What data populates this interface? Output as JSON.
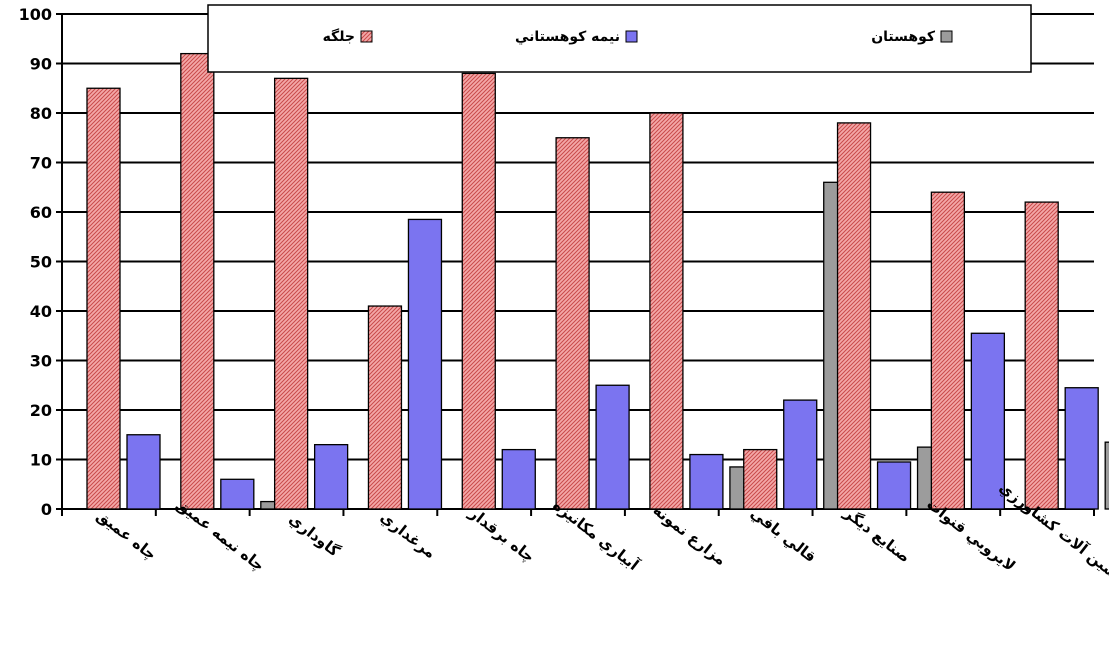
{
  "colors": {
    "background": "#ffffff",
    "grid": "#000000",
    "jolge": "#f4a8a8",
    "jolge_hatch": "#c84a4a",
    "nime_kuhestani": "#7b74f0",
    "kuhestan": "#9c9c9c"
  },
  "legend": {
    "placement": "top-center",
    "items": [
      "جلگه",
      "نيمه كوهستاني",
      "كوهستان"
    ]
  },
  "chart_data": {
    "type": "bar",
    "title": "",
    "xlabel": "",
    "ylabel": "",
    "ylim": [
      0,
      100
    ],
    "yticks": [
      0,
      10,
      20,
      30,
      40,
      50,
      60,
      70,
      80,
      90,
      100
    ],
    "grid": true,
    "categories": [
      "چاه عميق",
      "چاه نيمه عميق",
      "گاوداري",
      "مرغداري",
      "چاه برقدار",
      "آبياري مكانيزه",
      "مزارع نمونه",
      "قالي بافي",
      "صنايع ديگر",
      "لايروبي قنوات",
      "ماشين آلات كشاورزي"
    ],
    "series": [
      {
        "name": "جلگه",
        "values": [
          85,
          92,
          87,
          41,
          88,
          75,
          80,
          12,
          78,
          64,
          62
        ]
      },
      {
        "name": "نيمه كوهستاني",
        "values": [
          15,
          6,
          13,
          58.5,
          12,
          25,
          11,
          22,
          9.5,
          35.5,
          24.5
        ]
      },
      {
        "name": "كوهستان",
        "values": [
          0,
          1.5,
          0,
          0,
          0,
          0,
          8.5,
          66,
          12.5,
          0,
          13.5
        ]
      }
    ]
  }
}
